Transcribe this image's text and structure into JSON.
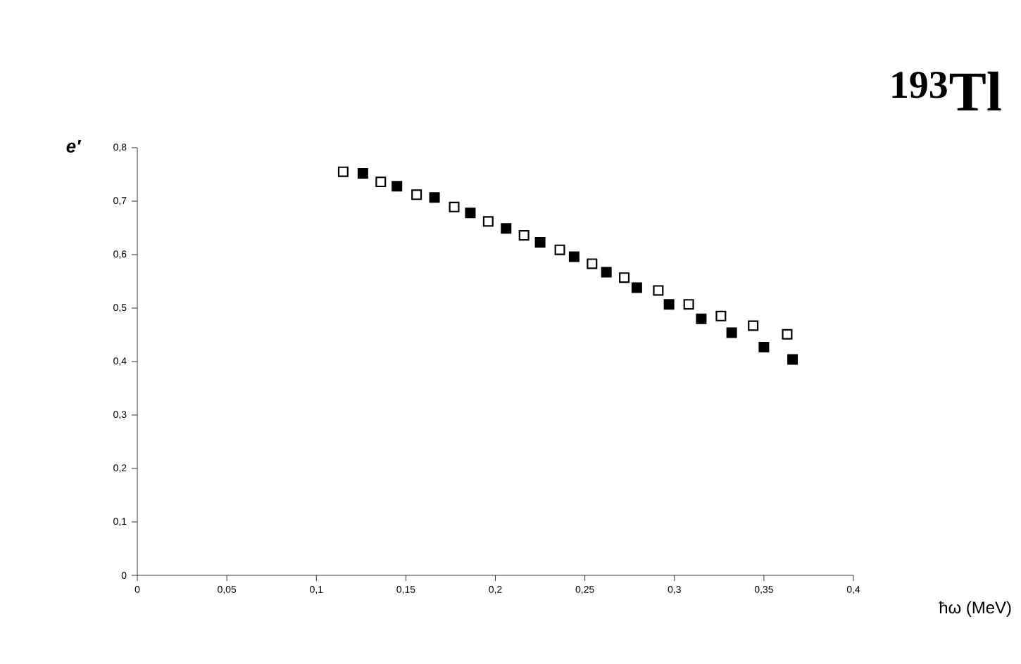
{
  "chart_data": {
    "type": "scatter",
    "title": "$^{193}$Tl",
    "xlabel": "ħω (MeV)",
    "ylabel": "e′",
    "xlim": [
      0,
      0.4
    ],
    "ylim": [
      0,
      0.8
    ],
    "xticks": [
      0,
      {
        "value": 0.05,
        "label": "0,05"
      },
      {
        "value": 0.1,
        "label": "0,1"
      },
      {
        "value": 0.15,
        "label": "0,15"
      },
      {
        "value": 0.2,
        "label": "0,2"
      },
      {
        "value": 0.25,
        "label": "0,25"
      },
      {
        "value": 0.3,
        "label": "0,3"
      },
      {
        "value": 0.35,
        "label": "0,35"
      },
      {
        "value": 0.4,
        "label": "0,4"
      }
    ],
    "yticks": [
      0,
      {
        "value": 0.1,
        "label": "0,1"
      },
      {
        "value": 0.2,
        "label": "0,2"
      },
      {
        "value": 0.3,
        "label": "0,3"
      },
      {
        "value": 0.4,
        "label": "0,4"
      },
      {
        "value": 0.5,
        "label": "0,5"
      },
      {
        "value": 0.6,
        "label": "0,6"
      },
      {
        "value": 0.7,
        "label": "0,7"
      },
      {
        "value": 0.8,
        "label": "0,8"
      }
    ],
    "grid": false,
    "marker": "square",
    "series": [
      {
        "color": "#ffffff",
        "x": [
          0.115,
          0.136,
          0.156,
          0.177,
          0.196,
          0.216,
          0.236,
          0.254,
          0.272,
          0.291,
          0.308,
          0.326,
          0.344,
          0.363
        ],
        "values": [
          0.755,
          0.736,
          0.712,
          0.689,
          0.662,
          0.636,
          0.609,
          0.583,
          0.557,
          0.533,
          0.507,
          0.485,
          0.467,
          0.451
        ]
      },
      {
        "color": "#000000",
        "x": [
          0.126,
          0.145,
          0.166,
          0.186,
          0.206,
          0.225,
          0.244,
          0.262,
          0.279,
          0.297,
          0.315,
          0.332,
          0.35,
          0.366
        ],
        "values": [
          0.752,
          0.728,
          0.707,
          0.678,
          0.649,
          0.623,
          0.596,
          0.567,
          0.538,
          0.507,
          0.48,
          0.454,
          0.427,
          0.404
        ]
      }
    ]
  }
}
